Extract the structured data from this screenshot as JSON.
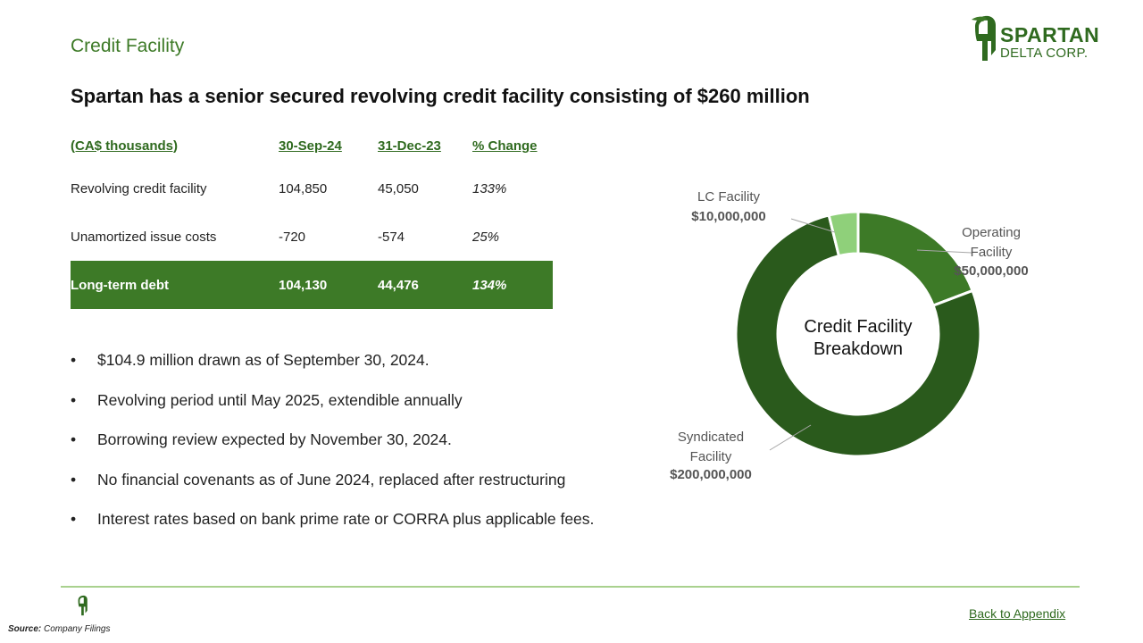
{
  "section_title": "Credit Facility",
  "logo": {
    "line1": "SPARTAN",
    "line2": "DELTA CORP."
  },
  "headline": "Spartan has a senior secured revolving credit facility consisting of $260 million",
  "table": {
    "headers": [
      "(CA$ thousands)",
      "30-Sep-24",
      "31-Dec-23",
      "% Change"
    ],
    "rows": [
      [
        "Revolving credit facility",
        "104,850",
        "45,050",
        "133%"
      ],
      [
        "Unamortized issue costs",
        "-720",
        "-574",
        "25%"
      ],
      [
        "Long-term debt",
        "104,130",
        "44,476",
        "134%"
      ]
    ]
  },
  "bullets": [
    "$104.9 million drawn as of September 30, 2024.",
    "Revolving period until May 2025, extendible annually",
    "Borrowing review expected by November 30, 2024.",
    "No financial covenants as of June 2024, replaced after restructuring",
    "Interest rates based on bank prime rate or CORRA plus applicable fees."
  ],
  "bullet_symbol": "•",
  "chart_data": {
    "type": "pie",
    "title": "Credit Facility Breakdown",
    "title_lines": [
      "Credit Facility",
      "Breakdown"
    ],
    "slices": [
      {
        "label": "Operating Facility",
        "label_lines": [
          "Operating",
          "Facility"
        ],
        "value_label": "$50,000,000",
        "value": 50000000,
        "color": "#3d7a27"
      },
      {
        "label": "Syndicated Facility",
        "label_lines": [
          "Syndicated",
          "Facility"
        ],
        "value_label": "$200,000,000",
        "value": 200000000,
        "color": "#2a5a1c"
      },
      {
        "label": "LC Facility",
        "label_lines": [
          "LC Facility"
        ],
        "value_label": "$10,000,000",
        "value": 10000000,
        "color": "#8fd07a"
      }
    ]
  },
  "footer": {
    "source_label": "Source:",
    "source_text": "Company Filings",
    "back_link": "Back to Appendix"
  },
  "icons": {
    "logo": "spartan-helmet-icon",
    "footer": "spartan-helmet-icon"
  }
}
